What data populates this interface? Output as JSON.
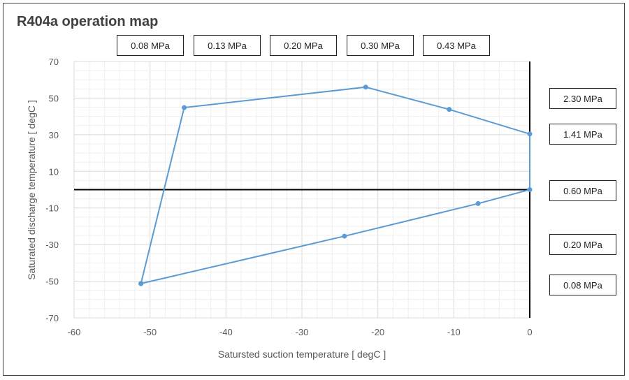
{
  "chart_data": {
    "type": "line",
    "title": "R404a operation map",
    "xlabel": "Satursted suction temperature [ degC ]",
    "ylabel": "Saturated discharge temperature [ degC ]",
    "xlim": [
      -60,
      0
    ],
    "ylim": [
      -70,
      70
    ],
    "xticks": [
      -60,
      -50,
      -40,
      -30,
      -20,
      -10,
      0
    ],
    "yticks": [
      70,
      50,
      30,
      10,
      -10,
      -30,
      -50,
      -70
    ],
    "grid": true,
    "series": [
      {
        "color": "#5B9BD5",
        "x": [
          -51.2,
          -45.5,
          -21.6,
          -10.6,
          0,
          0,
          -6.8,
          -24.4,
          -51.2
        ],
        "y": [
          -51.3,
          44.8,
          56,
          43.8,
          30.4,
          0,
          -7.6,
          -25.4,
          -51.3
        ]
      }
    ],
    "pressure_labels_top": [
      "0.08 MPa",
      "0.13 MPa",
      "0.20 MPa",
      "0.30 MPa",
      "0.43 MPa"
    ],
    "pressure_labels_right": [
      "2.30 MPa",
      "1.41 MPa",
      "0.60 MPa",
      "0.20 MPa",
      "0.08 MPa"
    ]
  }
}
